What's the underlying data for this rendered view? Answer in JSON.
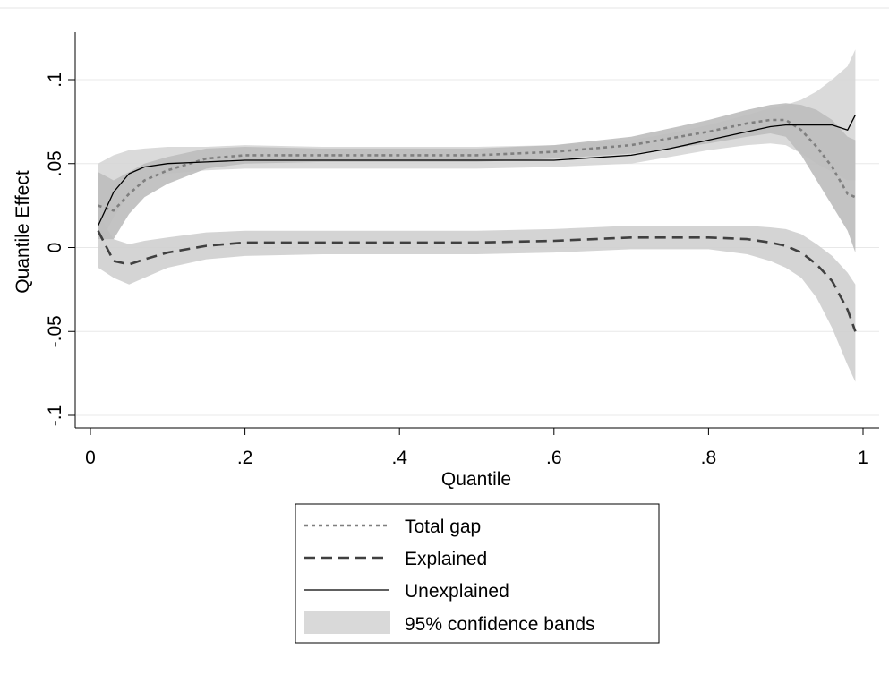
{
  "chart_data": {
    "type": "line",
    "title": "",
    "xlabel": "Quantile",
    "ylabel": "Quantile Effect",
    "xlim": [
      0,
      1
    ],
    "ylim": [
      -0.1,
      0.1
    ],
    "xticks": [
      {
        "value": 0,
        "label": "0"
      },
      {
        "value": 0.2,
        "label": ".2"
      },
      {
        "value": 0.4,
        "label": ".4"
      },
      {
        "value": 0.6,
        "label": ".6"
      },
      {
        "value": 0.8,
        "label": ".8"
      },
      {
        "value": 1,
        "label": "1"
      }
    ],
    "yticks": [
      {
        "value": -0.1,
        "label": "-.1"
      },
      {
        "value": -0.05,
        "label": "-.05"
      },
      {
        "value": 0,
        "label": "0"
      },
      {
        "value": 0.05,
        "label": ".05"
      },
      {
        "value": 0.1,
        "label": ".1"
      }
    ],
    "grid": true,
    "legend_position": "bottom",
    "x": [
      0.01,
      0.03,
      0.05,
      0.07,
      0.1,
      0.15,
      0.2,
      0.3,
      0.4,
      0.5,
      0.6,
      0.7,
      0.75,
      0.8,
      0.85,
      0.88,
      0.9,
      0.92,
      0.94,
      0.96,
      0.98,
      0.99
    ],
    "series": [
      {
        "name": "Total gap",
        "style": "dotted",
        "color": "#7f7f7f",
        "values": [
          0.025,
          0.022,
          0.032,
          0.04,
          0.046,
          0.053,
          0.055,
          0.055,
          0.055,
          0.055,
          0.057,
          0.061,
          0.065,
          0.069,
          0.074,
          0.076,
          0.076,
          0.07,
          0.06,
          0.048,
          0.032,
          0.03
        ],
        "band_lo": [
          0.005,
          0.005,
          0.02,
          0.03,
          0.038,
          0.047,
          0.05,
          0.051,
          0.051,
          0.051,
          0.053,
          0.056,
          0.059,
          0.062,
          0.066,
          0.068,
          0.066,
          0.055,
          0.04,
          0.025,
          0.01,
          -0.003
        ],
        "band_hi": [
          0.045,
          0.04,
          0.045,
          0.05,
          0.054,
          0.059,
          0.06,
          0.059,
          0.059,
          0.059,
          0.061,
          0.066,
          0.071,
          0.076,
          0.082,
          0.085,
          0.086,
          0.085,
          0.082,
          0.076,
          0.066,
          0.064
        ]
      },
      {
        "name": "Explained",
        "style": "dashed",
        "color": "#404040",
        "values": [
          0.01,
          -0.008,
          -0.01,
          -0.007,
          -0.003,
          0.001,
          0.003,
          0.003,
          0.003,
          0.003,
          0.004,
          0.006,
          0.006,
          0.006,
          0.005,
          0.003,
          0.001,
          -0.003,
          -0.01,
          -0.02,
          -0.037,
          -0.05
        ],
        "band_lo": [
          -0.012,
          -0.018,
          -0.022,
          -0.018,
          -0.012,
          -0.007,
          -0.005,
          -0.004,
          -0.004,
          -0.004,
          -0.003,
          -0.001,
          -0.001,
          -0.001,
          -0.004,
          -0.008,
          -0.012,
          -0.018,
          -0.03,
          -0.048,
          -0.07,
          -0.08
        ],
        "band_hi": [
          0.02,
          0.005,
          0.002,
          0.004,
          0.006,
          0.009,
          0.01,
          0.01,
          0.01,
          0.01,
          0.011,
          0.013,
          0.013,
          0.013,
          0.013,
          0.012,
          0.011,
          0.008,
          0.002,
          -0.005,
          -0.015,
          -0.022
        ]
      },
      {
        "name": "Unexplained",
        "style": "solid",
        "color": "#000000",
        "values": [
          0.013,
          0.033,
          0.044,
          0.048,
          0.05,
          0.051,
          0.052,
          0.052,
          0.052,
          0.052,
          0.052,
          0.055,
          0.059,
          0.064,
          0.069,
          0.072,
          0.073,
          0.073,
          0.073,
          0.073,
          0.07,
          0.079
        ],
        "band_lo": [
          0.0,
          0.018,
          0.032,
          0.04,
          0.044,
          0.046,
          0.047,
          0.047,
          0.047,
          0.047,
          0.048,
          0.05,
          0.054,
          0.058,
          0.061,
          0.062,
          0.061,
          0.056,
          0.05,
          0.045,
          0.04,
          0.04
        ],
        "band_hi": [
          0.05,
          0.055,
          0.058,
          0.059,
          0.06,
          0.06,
          0.061,
          0.06,
          0.06,
          0.06,
          0.061,
          0.064,
          0.068,
          0.073,
          0.079,
          0.083,
          0.085,
          0.088,
          0.093,
          0.1,
          0.108,
          0.118
        ]
      }
    ],
    "band_legend_label": "95% confidence bands",
    "band_color": "#d9d9d9"
  }
}
